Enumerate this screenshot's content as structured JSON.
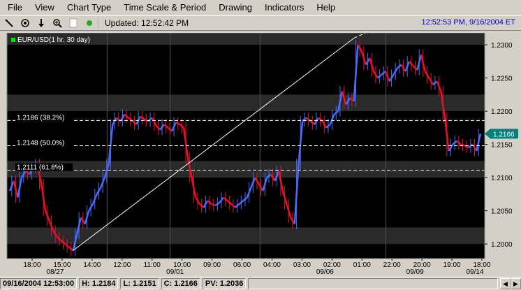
{
  "menu": [
    "File",
    "View",
    "Chart Type",
    "Time Scale & Period",
    "Drawing",
    "Indicators",
    "Help"
  ],
  "toolbar": {
    "icons": [
      "line-tool-icon",
      "target-icon",
      "down-arrow-icon",
      "zoom-icon",
      "blank-icon",
      "pointer-icon"
    ],
    "updated_text": "Updated: 12:52:42 PM",
    "clock_text": "12:52:53 PM, 9/16/2004 ET"
  },
  "colors": {
    "background": "#000000",
    "band_dark": "#2a2a2a",
    "up": "#4a6cff",
    "down": "#e8102a",
    "last_price_bg": "#00807a",
    "legend": "#00dd00"
  },
  "chart_data": {
    "type": "candlestick",
    "symbol_label": "EUR/USD(1 hr. 30 day)",
    "y_ticks": [
      "1.2300",
      "1.2250",
      "1.2200",
      "1.2150",
      "1.2100",
      "1.2050",
      "1.2000"
    ],
    "ylim": [
      1.1978,
      1.2318
    ],
    "x_ticks": [
      "18:00",
      "15:00",
      "14:00",
      "12:00",
      "11:00",
      "10:00",
      "09:00",
      "06:00",
      "04:00",
      "03:00",
      "02:00",
      "01:00",
      "22:00",
      "20:00",
      "19:00",
      "18:00"
    ],
    "date_ticks": [
      "08/27",
      "09/01",
      "09/06",
      "09/09",
      "09/14"
    ],
    "fib_levels": [
      {
        "label": "1.2186 (38.2%)",
        "value": 1.2186
      },
      {
        "label": "1.2148 (50.0%)",
        "value": 1.2148
      },
      {
        "label": "1.2111 (61.8%)",
        "value": 1.2111
      }
    ],
    "last_price": "1.2166",
    "trendline": {
      "from_value": 1.199,
      "to_value": 1.232
    },
    "price_path": [
      1.208,
      1.2095,
      1.207,
      1.21,
      1.211,
      1.2105,
      1.2115,
      1.212,
      1.209,
      1.205,
      1.2035,
      1.202,
      1.201,
      1.2005,
      1.2,
      1.1995,
      1.199,
      1.2015,
      1.204,
      1.203,
      1.205,
      1.206,
      1.2075,
      1.2085,
      1.21,
      1.212,
      1.218,
      1.219,
      1.2185,
      1.2195,
      1.219,
      1.2185,
      1.218,
      1.2192,
      1.2188,
      1.2185,
      1.219,
      1.2178,
      1.2172,
      1.218,
      1.2175,
      1.217,
      1.2183,
      1.218,
      1.2175,
      1.213,
      1.21,
      1.207,
      1.206,
      1.2055,
      1.2065,
      1.206,
      1.2058,
      1.2062,
      1.207,
      1.2065,
      1.206,
      1.2055,
      1.206,
      1.2065,
      1.207,
      1.2085,
      1.21,
      1.209,
      1.208,
      1.21,
      1.2105,
      1.2095,
      1.211,
      1.208,
      1.206,
      1.204,
      1.203,
      1.212,
      1.2185,
      1.219,
      1.2185,
      1.218,
      1.219,
      1.2185,
      1.2175,
      1.218,
      1.2195,
      1.22,
      1.223,
      1.221,
      1.222,
      1.2215,
      1.23,
      1.229,
      1.227,
      1.228,
      1.226,
      1.225,
      1.2255,
      1.226,
      1.2245,
      1.2255,
      1.2265,
      1.227,
      1.226,
      1.2275,
      1.2268,
      1.2262,
      1.2285,
      1.226,
      1.225,
      1.224,
      1.2245,
      1.223,
      1.219,
      1.214,
      1.215,
      1.2155,
      1.215,
      1.2148,
      1.2145,
      1.215,
      1.214,
      1.2166
    ]
  },
  "status": {
    "datetime": "09/16/2004 12:53:00",
    "high_label": "H:",
    "high": "1.2184",
    "low_label": "L:",
    "low": "1.2151",
    "close_label": "C:",
    "close": "1.2166",
    "pv_label": "PV:",
    "pv": "1.2036"
  }
}
